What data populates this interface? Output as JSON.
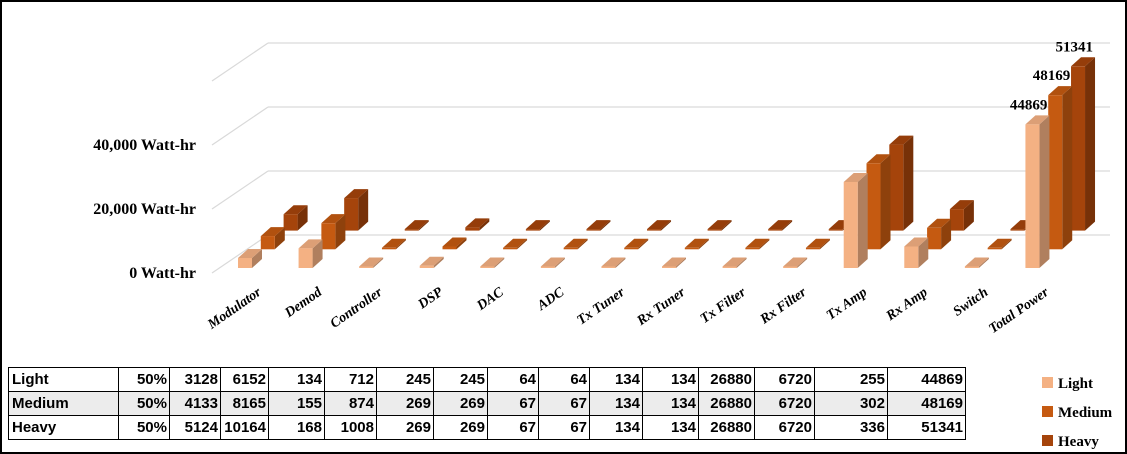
{
  "chart_data": {
    "type": "bar",
    "variant": "3d-clustered-column",
    "categories": [
      "Modulator",
      "Demod",
      "Controller",
      "DSP",
      "DAC",
      "ADC",
      "Tx Tuner",
      "Rx Tuner",
      "Tx Filter",
      "Rx Filter",
      "Tx Amp",
      "Rx Amp",
      "Switch",
      "Total Power"
    ],
    "series": [
      {
        "name": "Light",
        "color": "#f4b183",
        "values": [
          3128,
          6152,
          134,
          712,
          245,
          245,
          64,
          64,
          134,
          134,
          26880,
          6720,
          255,
          44869
        ]
      },
      {
        "name": "Medium",
        "color": "#c55a11",
        "values": [
          4133,
          8165,
          155,
          874,
          269,
          269,
          67,
          67,
          134,
          134,
          26880,
          6720,
          302,
          48169
        ]
      },
      {
        "name": "Heavy",
        "color": "#a5440b",
        "values": [
          5124,
          10164,
          168,
          1008,
          269,
          269,
          67,
          67,
          134,
          134,
          26880,
          6720,
          336,
          51341
        ]
      }
    ],
    "ytick_labels": [
      "0 Watt-hr",
      "20,000 Watt-hr",
      "40,000 Watt-hr"
    ],
    "ylim": [
      0,
      60000
    ],
    "data_labels": [
      "44869",
      "48169",
      "51341"
    ],
    "grid": true,
    "legend": "right"
  },
  "table": {
    "rows": [
      {
        "label": "Light",
        "cells": [
          "50%",
          "3128",
          "6152",
          "134",
          "712",
          "245",
          "245",
          "64",
          "64",
          "134",
          "134",
          "26880",
          "6720",
          "255",
          "44869"
        ]
      },
      {
        "label": "Medium",
        "cells": [
          "50%",
          "4133",
          "8165",
          "155",
          "874",
          "269",
          "269",
          "67",
          "67",
          "134",
          "134",
          "26880",
          "6720",
          "302",
          "48169"
        ]
      },
      {
        "label": "Heavy",
        "cells": [
          "50%",
          "5124",
          "10164",
          "168",
          "1008",
          "269",
          "269",
          "67",
          "67",
          "134",
          "134",
          "26880",
          "6720",
          "336",
          "51341"
        ]
      }
    ]
  }
}
